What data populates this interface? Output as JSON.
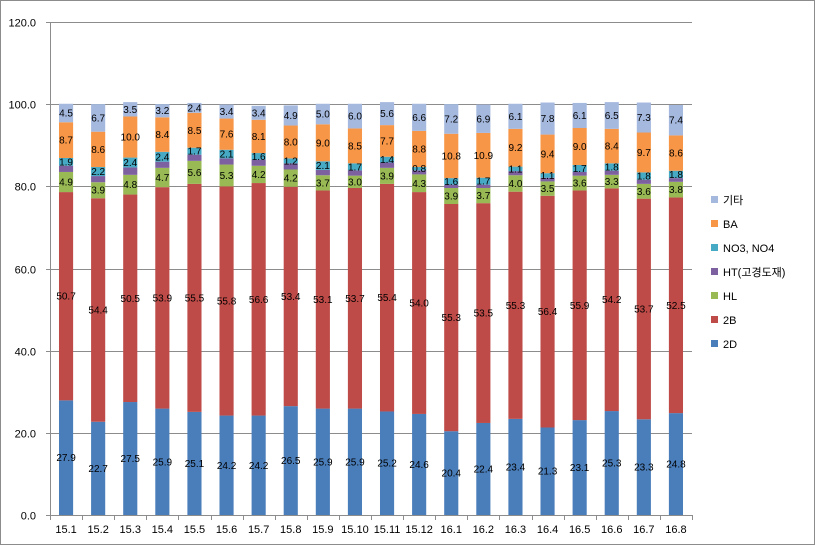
{
  "chart_data": {
    "type": "bar",
    "stacked": true,
    "grid": true,
    "legend_position": "right",
    "title": "",
    "xlabel": "",
    "ylabel": "",
    "ylim": [
      0,
      120
    ],
    "ytick_labels": [
      "0.0",
      "20.0",
      "40.0",
      "60.0",
      "80.0",
      "100.0",
      "120.0"
    ],
    "categories": [
      "15.1",
      "15.2",
      "15.3",
      "15.4",
      "15.5",
      "15.6",
      "15.7",
      "15.8",
      "15.9",
      "15.10",
      "15.11",
      "15.12",
      "16.1",
      "16.2",
      "16.3",
      "16.4",
      "16.5",
      "16.6",
      "16.7",
      "16.8"
    ],
    "series": [
      {
        "name": "2D",
        "color": "#4a7ebb",
        "labeled": true,
        "values": [
          27.9,
          22.7,
          27.5,
          25.9,
          25.1,
          24.2,
          24.2,
          26.5,
          25.9,
          25.9,
          25.2,
          24.6,
          20.4,
          22.4,
          23.4,
          21.3,
          23.1,
          25.3,
          23.3,
          24.8
        ]
      },
      {
        "name": "2B",
        "color": "#be4b48",
        "labeled": true,
        "values": [
          50.7,
          54.4,
          50.5,
          53.9,
          55.5,
          55.8,
          56.6,
          53.4,
          53.1,
          53.7,
          55.4,
          54.0,
          55.3,
          53.5,
          55.3,
          56.4,
          55.9,
          54.2,
          53.7,
          52.5
        ]
      },
      {
        "name": "HL",
        "color": "#98b954",
        "labeled": true,
        "values": [
          4.9,
          3.9,
          4.8,
          4.7,
          5.6,
          5.3,
          4.2,
          4.2,
          3.7,
          3.0,
          3.9,
          4.3,
          3.9,
          3.7,
          4.0,
          3.5,
          3.6,
          3.3,
          3.6,
          3.8
        ]
      },
      {
        "name": "HT(고경도재)",
        "color": "#7d60a0",
        "labeled": false,
        "values": [
          1.5,
          1.5,
          1.8,
          1.5,
          1.5,
          1.5,
          1.5,
          1.5,
          1.3,
          1.3,
          1.3,
          1.0,
          0.8,
          0.8,
          1.0,
          0.9,
          0.9,
          1.0,
          1.0,
          0.9
        ]
      },
      {
        "name": "NO3, NO4",
        "color": "#46aac5",
        "labeled": true,
        "values": [
          1.9,
          2.2,
          2.4,
          2.4,
          1.7,
          2.1,
          1.6,
          1.2,
          2.1,
          1.7,
          1.4,
          0.8,
          1.6,
          1.7,
          1.1,
          1.1,
          1.7,
          1.8,
          1.8,
          1.8
        ]
      },
      {
        "name": "BA",
        "color": "#f79646",
        "labeled": true,
        "values": [
          8.7,
          8.6,
          10.0,
          8.4,
          8.5,
          7.6,
          8.1,
          8.0,
          9.0,
          8.5,
          7.7,
          8.8,
          10.8,
          10.9,
          9.2,
          9.4,
          9.0,
          8.4,
          9.7,
          8.6
        ]
      },
      {
        "name": "기타",
        "color": "#a5b9df",
        "labeled": true,
        "values": [
          4.5,
          6.7,
          3.5,
          3.2,
          2.4,
          3.4,
          3.4,
          4.9,
          5.0,
          6.0,
          5.6,
          6.6,
          7.2,
          6.9,
          6.1,
          7.8,
          6.1,
          6.5,
          7.3,
          7.4
        ]
      }
    ]
  }
}
